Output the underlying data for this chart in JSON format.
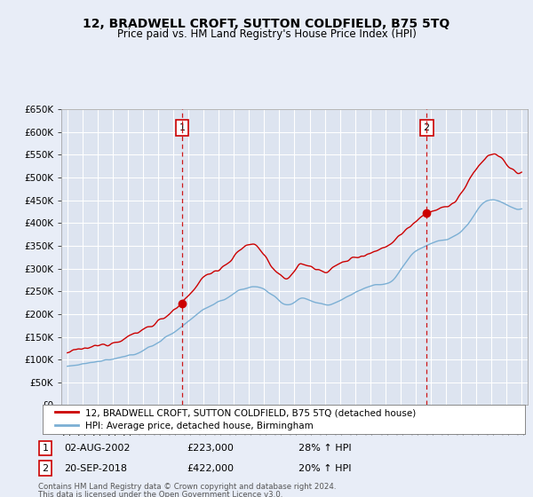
{
  "title": "12, BRADWELL CROFT, SUTTON COLDFIELD, B75 5TQ",
  "subtitle": "Price paid vs. HM Land Registry's House Price Index (HPI)",
  "ylabel_ticks": [
    "£0",
    "£50K",
    "£100K",
    "£150K",
    "£200K",
    "£250K",
    "£300K",
    "£350K",
    "£400K",
    "£450K",
    "£500K",
    "£550K",
    "£600K",
    "£650K"
  ],
  "ylim": [
    0,
    650000
  ],
  "ytick_values": [
    0,
    50000,
    100000,
    150000,
    200000,
    250000,
    300000,
    350000,
    400000,
    450000,
    500000,
    550000,
    600000,
    650000
  ],
  "xlim_start": 1994.6,
  "xlim_end": 2025.4,
  "sale1_x": 2002.58,
  "sale1_y": 223000,
  "sale2_x": 2018.72,
  "sale2_y": 422000,
  "line_color_property": "#cc0000",
  "line_color_hpi": "#7bafd4",
  "vline_color": "#cc0000",
  "legend_label_property": "12, BRADWELL CROFT, SUTTON COLDFIELD, B75 5TQ (detached house)",
  "legend_label_hpi": "HPI: Average price, detached house, Birmingham",
  "annotation1_date": "02-AUG-2002",
  "annotation1_price": "£223,000",
  "annotation1_hpi": "28% ↑ HPI",
  "annotation2_date": "20-SEP-2018",
  "annotation2_price": "£422,000",
  "annotation2_hpi": "20% ↑ HPI",
  "footer": "Contains HM Land Registry data © Crown copyright and database right 2024.\nThis data is licensed under the Open Government Licence v3.0.",
  "background_color": "#e8edf7",
  "plot_bg_color": "#dde4f0"
}
